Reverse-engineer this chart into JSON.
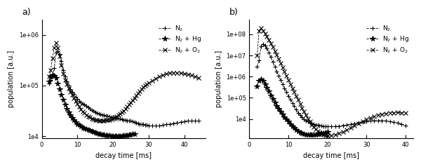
{
  "panel_a": {
    "label": "a)",
    "N2": {
      "x": [
        2,
        2.5,
        3,
        3.5,
        4,
        4.5,
        5,
        5.5,
        6,
        6.5,
        7,
        7.5,
        8,
        8.5,
        9,
        9.5,
        10,
        10.5,
        11,
        11.5,
        12,
        12.5,
        13,
        13.5,
        14,
        14.5,
        15,
        15.5,
        16,
        16.5,
        17,
        17.5,
        18,
        18.5,
        19,
        19.5,
        20,
        20.5,
        21,
        21.5,
        22,
        22.5,
        23,
        23.5,
        24,
        24.5,
        25,
        25.5,
        26,
        26.5,
        27,
        27.5,
        28,
        28.5,
        29,
        29.5,
        30,
        31,
        32,
        33,
        34,
        35,
        36,
        37,
        38,
        39,
        40,
        41,
        42,
        43,
        44
      ],
      "y": [
        110000.0,
        130000.0,
        150000.0,
        220000.0,
        450000.0,
        480000.0,
        420000.0,
        300000.0,
        200000.0,
        150000.0,
        120000.0,
        100000.0,
        85000.0,
        75000.0,
        68000.0,
        60000.0,
        55000.0,
        50000.0,
        47000.0,
        44000.0,
        42000.0,
        39000.0,
        37000.0,
        35000.0,
        33000.0,
        32000.0,
        30000.0,
        29000.0,
        28000.0,
        27000.0,
        26500.0,
        26000.0,
        25500.0,
        25000.0,
        24500.0,
        24000.0,
        23500.0,
        23000.0,
        22500.0,
        22000.0,
        22000.0,
        21500.0,
        21000.0,
        21000.0,
        20500.0,
        20000.0,
        20000.0,
        19500.0,
        19000.0,
        18500.0,
        18000.0,
        17500.0,
        17200.0,
        17000.0,
        16800.0,
        16500.0,
        16200.0,
        16000.0,
        16000.0,
        16000.0,
        16500.0,
        17000.0,
        17500.0,
        18000.0,
        18500.0,
        19000.0,
        19500.0,
        20000.0,
        20000.0,
        20000.0,
        20000.0
      ]
    },
    "N2Hg": {
      "x": [
        2,
        2.5,
        3,
        3.5,
        4,
        4.5,
        5,
        5.5,
        6,
        6.5,
        7,
        7.5,
        8,
        8.5,
        9,
        9.5,
        10,
        10.5,
        11,
        11.5,
        12,
        12.5,
        13,
        13.5,
        14,
        14.5,
        15,
        15.5,
        16,
        16.5,
        17,
        17.5,
        18,
        18.5,
        19,
        19.5,
        20,
        20.5,
        21,
        21.5,
        22,
        22.5,
        23,
        23.5,
        24,
        24.5,
        25,
        25.5,
        26
      ],
      "y": [
        120000.0,
        150000.0,
        160000.0,
        155000.0,
        140000.0,
        110000.0,
        85000.0,
        65000.0,
        52000.0,
        42000.0,
        35000.0,
        30000.0,
        26000.0,
        23000.0,
        21000.0,
        19000.0,
        17500.0,
        16500.0,
        15500.0,
        14800.0,
        14200.0,
        13800.0,
        13400.0,
        13000.0,
        12600.0,
        12200.0,
        11800.0,
        11500.0,
        11200.0,
        11000.0,
        10800.0,
        10600.0,
        10500.0,
        10400.0,
        10300.0,
        10200.0,
        10100.0,
        10000.0,
        10000.0,
        10000.0,
        10100.0,
        10200.0,
        10300.0,
        10400.0,
        10500.0,
        10600.0,
        10800.0,
        11000.0,
        11200.0
      ]
    },
    "N2O2": {
      "x": [
        2,
        2.5,
        3,
        3.5,
        4,
        4.5,
        5,
        5.5,
        6,
        6.5,
        7,
        7.5,
        8,
        8.5,
        9,
        9.5,
        10,
        10.5,
        11,
        11.5,
        12,
        12.5,
        13,
        13.5,
        14,
        14.5,
        15,
        15.5,
        16,
        16.5,
        17,
        17.5,
        18,
        18.5,
        19,
        19.5,
        20,
        20.5,
        21,
        21.5,
        22,
        22.5,
        23,
        23.5,
        24,
        24.5,
        25,
        25.5,
        26,
        26.5,
        27,
        27.5,
        28,
        28.5,
        29,
        29.5,
        30,
        31,
        32,
        33,
        34,
        35,
        36,
        37,
        38,
        39,
        40,
        41,
        42,
        43,
        44
      ],
      "y": [
        150000.0,
        200000.0,
        350000.0,
        550000.0,
        700000.0,
        550000.0,
        380000.0,
        250000.0,
        170000.0,
        130000.0,
        105000.0,
        88000.0,
        75000.0,
        65000.0,
        56000.0,
        49000.0,
        43000.0,
        38000.0,
        34000.0,
        31000.0,
        28500.0,
        26500.0,
        24800.0,
        23500.0,
        22500.0,
        21800.0,
        21200.0,
        20800.0,
        20500.0,
        20400.0,
        20400.0,
        20500.0,
        20600.0,
        20800.0,
        21200.0,
        21800.0,
        22500.0,
        23500.0,
        24800.0,
        26200.0,
        28000.0,
        30000.0,
        32000.0,
        35000.0,
        38000.0,
        42000.0,
        46000.0,
        51000.0,
        57000.0,
        63000.0,
        70000.0,
        78000.0,
        85000.0,
        92000.0,
        99000.0,
        105000.0,
        112000.0,
        125000.0,
        138000.0,
        150000.0,
        160000.0,
        170000.0,
        175000.0,
        178000.0,
        178000.0,
        175000.0,
        170000.0,
        165000.0,
        158000.0,
        150000.0,
        140000.0
      ]
    },
    "ylim": [
      9000,
      2000000.0
    ],
    "xlim": [
      0,
      46
    ]
  },
  "panel_b": {
    "label": "b)",
    "N2": {
      "x": [
        2,
        2.5,
        3,
        3.5,
        4,
        4.5,
        5,
        5.5,
        6,
        6.5,
        7,
        7.5,
        8,
        8.5,
        9,
        9.5,
        10,
        10.5,
        11,
        11.5,
        12,
        12.5,
        13,
        13.5,
        14,
        14.5,
        15,
        15.5,
        16,
        16.5,
        17,
        17.5,
        18,
        18.5,
        19,
        19.5,
        20,
        21,
        22,
        23,
        24,
        25,
        26,
        27,
        28,
        29,
        30,
        31,
        32,
        33,
        34,
        35,
        36,
        37,
        38,
        39,
        40
      ],
      "y": [
        3000000.0,
        6000000.0,
        28000000.0,
        35000000.0,
        30000000.0,
        22000000.0,
        14000000.0,
        8500000.0,
        5000000.0,
        3000000.0,
        1800000.0,
        1100000.0,
        700000.0,
        450000.0,
        290000.0,
        190000.0,
        125000.0,
        85000.0,
        58000.0,
        40000.0,
        28000.0,
        20000.0,
        15000.0,
        12000.0,
        10000.0,
        8500.0,
        7500.0,
        6800.0,
        6200.0,
        5800.0,
        5500.0,
        5200.0,
        5000.0,
        4800.0,
        4600.0,
        4500.0,
        4400.0,
        4400.0,
        4500.0,
        4700.0,
        5000.0,
        5300.0,
        5700.0,
        6200.0,
        6700.0,
        7200.0,
        7700.0,
        8100.0,
        8400.0,
        8500.0,
        8500.0,
        8200.0,
        7800.0,
        7200.0,
        6500.0,
        5700.0,
        5000.0
      ]
    },
    "N2Hg": {
      "x": [
        2,
        2.5,
        3,
        3.5,
        4,
        4.5,
        5,
        5.5,
        6,
        6.5,
        7,
        7.5,
        8,
        8.5,
        9,
        9.5,
        10,
        10.5,
        11,
        11.5,
        12,
        12.5,
        13,
        13.5,
        14,
        14.5,
        15,
        15.5,
        16,
        16.5,
        17,
        17.5,
        18,
        18.5,
        19,
        19.5,
        20
      ],
      "y": [
        350000.0,
        650000.0,
        750000.0,
        650000.0,
        450000.0,
        300000.0,
        200000.0,
        135000.0,
        90000.0,
        60000.0,
        42000.0,
        30000.0,
        22000.0,
        16500.0,
        12500.0,
        9500.0,
        7500.0,
        5800.0,
        4600.0,
        3800.0,
        3200.0,
        2700.0,
        2350.0,
        2100.0,
        1950.0,
        1850.0,
        1800.0,
        1780.0,
        1780.0,
        1800.0,
        1850.0,
        1920.0,
        2000.0,
        2100.0,
        2200.0,
        2350.0,
        2500.0
      ]
    },
    "N2O2": {
      "x": [
        2,
        2.5,
        3,
        3.5,
        4,
        4.5,
        5,
        5.5,
        6,
        6.5,
        7,
        7.5,
        8,
        8.5,
        9,
        9.5,
        10,
        10.5,
        11,
        11.5,
        12,
        12.5,
        13,
        13.5,
        14,
        14.5,
        15,
        15.5,
        16,
        16.5,
        17,
        17.5,
        18,
        18.5,
        19,
        19.5,
        20,
        21,
        22,
        23,
        24,
        25,
        26,
        27,
        28,
        29,
        30,
        31,
        32,
        33,
        34,
        35,
        36,
        37,
        38,
        39,
        40
      ],
      "y": [
        10000000.0,
        150000000.0,
        190000000.0,
        150000000.0,
        110000000.0,
        80000000.0,
        55000000.0,
        38000000.0,
        25000000.0,
        16500000.0,
        10500000.0,
        6800000.0,
        4300000.0,
        2750000.0,
        1750000.0,
        1100000.0,
        700000.0,
        450000.0,
        290000.0,
        188000.0,
        122000.0,
        80000.0,
        52000.0,
        34000.0,
        22500.0,
        15200.0,
        10500.0,
        7500.0,
        5500.0,
        4200.0,
        3300.0,
        2700.0,
        2300.0,
        2000.0,
        1820.0,
        1720.0,
        1680.0,
        1720.0,
        1850.0,
        2100.0,
        2500.0,
        3100.0,
        3900.0,
        5000.0,
        6300.0,
        7800.0,
        9500.0,
        11500.0,
        13500.0,
        15500.0,
        17200.0,
        18500.0,
        19500.0,
        20000.0,
        20200.0,
        20000.0,
        19500.0
      ]
    },
    "ylim": [
      1200,
      500000000.0
    ],
    "xlim": [
      0,
      42
    ]
  },
  "color_N2": "#000000",
  "color_N2Hg": "#000000",
  "color_N2O2": "#000000",
  "xlabel": "decay time [ms]",
  "ylabel": "population [a.u.]",
  "marker_N2": "+",
  "marker_N2Hg": "*",
  "marker_N2O2": "x",
  "ms_N2": 4.5,
  "ms_N2Hg": 5.5,
  "ms_N2O2": 4.5,
  "linewidth": 0.6,
  "legend_N2": "N$_2$",
  "legend_N2Hg": "N$_2$ + Hg",
  "legend_N2O2": "N$_2$ + O$_2$"
}
